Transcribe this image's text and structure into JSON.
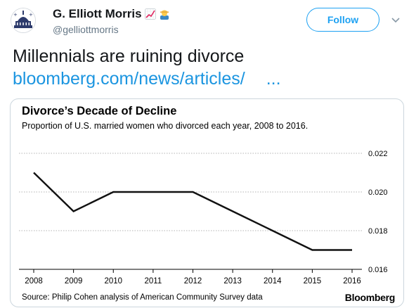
{
  "tweet": {
    "author_name": "G. Elliott Morris",
    "handle": "@gelliottmorris",
    "follow_label": "Follow",
    "text": "Millennials are ruining divorce",
    "link_text": "bloomberg.com/news/articles/",
    "link_ellipsis": "...",
    "icons": {
      "avatar": "capitol-building-avatar",
      "emoji1": "chart-increasing-emoji",
      "emoji2": "man-farmer-emoji",
      "menu": "chevron-down-icon"
    },
    "colors": {
      "accent": "#1da1f2",
      "link": "#1b95e0",
      "muted": "#657786"
    }
  },
  "chart_card": {
    "title": "Divorce’s Decade of Decline",
    "subtitle": "Proportion of U.S. married women who divorced each year, 2008 to 2016.",
    "source": "Source: Philip Cohen analysis of American Community Survey data",
    "brand": "Bloomberg"
  },
  "chart_data": {
    "type": "line",
    "title": "Divorce’s Decade of Decline",
    "subtitle": "Proportion of U.S. married women who divorced each year, 2008 to 2016.",
    "x": [
      "2008",
      "2009",
      "2010",
      "2011",
      "2012",
      "2013",
      "2014",
      "2015",
      "2016"
    ],
    "series": [
      {
        "values": [
          0.021,
          0.019,
          0.02,
          0.02,
          0.02,
          0.019,
          0.018,
          0.017,
          0.017
        ]
      }
    ],
    "ylim": [
      0.016,
      0.022
    ],
    "y_ticks": [
      "0.016",
      "0.018",
      "0.020",
      "0.022"
    ],
    "y_axis_side": "right",
    "grid": "horizontal dotted",
    "line_color": "#111111"
  }
}
